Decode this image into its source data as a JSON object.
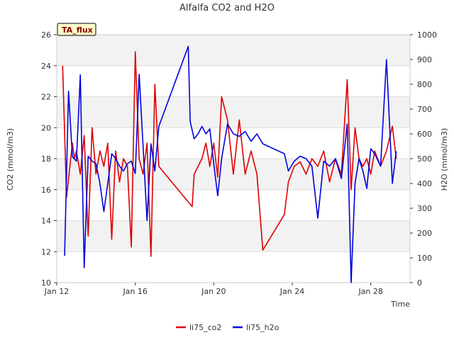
{
  "chart_data": {
    "type": "line",
    "title": "Alfalfa CO2 and H2O",
    "xlabel": "Time",
    "ylabel_left": "CO2 (mmol/m3)",
    "ylabel_right": "H2O (mmol/m3)",
    "badge": "TA_flux",
    "x_ticks": [
      "Jan 12",
      "Jan 16",
      "Jan 20",
      "Jan 24",
      "Jan 28"
    ],
    "x_tick_days": [
      12,
      16,
      20,
      24,
      28
    ],
    "xlim_days": [
      12,
      30
    ],
    "ylim_left": [
      10,
      26
    ],
    "y_ticks_left": [
      10,
      12,
      14,
      16,
      18,
      20,
      22,
      24,
      26
    ],
    "ylim_right": [
      0,
      1000
    ],
    "y_ticks_right": [
      0,
      100,
      200,
      300,
      400,
      500,
      600,
      700,
      800,
      900,
      1000
    ],
    "legend_position": "bottom-center",
    "series": [
      {
        "name": "li75_co2",
        "axis": "left",
        "color": "#dd0000",
        "x": [
          12.3,
          12.5,
          12.8,
          12.9,
          13.0,
          13.2,
          13.4,
          13.6,
          13.8,
          14.0,
          14.2,
          14.4,
          14.6,
          14.8,
          15.0,
          15.2,
          15.4,
          15.6,
          15.8,
          16.0,
          16.2,
          16.4,
          16.6,
          16.8,
          17.0,
          17.2,
          18.9,
          19.0,
          19.4,
          19.6,
          19.8,
          20.0,
          20.2,
          20.4,
          20.7,
          21.0,
          21.3,
          21.6,
          21.9,
          22.2,
          22.5,
          23.6,
          23.8,
          24.1,
          24.4,
          24.7,
          25.0,
          25.3,
          25.6,
          25.9,
          26.2,
          26.5,
          26.8,
          27.0,
          27.2,
          27.4,
          27.6,
          27.8,
          28.0,
          28.2,
          28.5,
          28.8,
          29.1,
          29.3
        ],
        "y": [
          24.0,
          15.5,
          19.0,
          18.0,
          18.5,
          17.0,
          19.5,
          13.0,
          20.0,
          17.0,
          18.5,
          17.5,
          19.0,
          12.8,
          18.5,
          16.5,
          18.0,
          17.5,
          12.3,
          24.9,
          18.0,
          17.0,
          19.0,
          11.7,
          22.8,
          17.5,
          14.9,
          17.0,
          18.0,
          19.0,
          17.5,
          19.0,
          16.8,
          22.0,
          20.5,
          17.0,
          20.5,
          17.0,
          18.5,
          17.0,
          12.1,
          14.4,
          16.5,
          17.5,
          17.8,
          17.0,
          18.0,
          17.5,
          18.5,
          16.5,
          18.0,
          17.0,
          23.1,
          16.0,
          20.0,
          18.0,
          17.5,
          18.0,
          17.0,
          18.5,
          17.5,
          18.5,
          20.1,
          18.0
        ]
      },
      {
        "name": "li75_h2o",
        "axis": "right",
        "color": "#0000dd",
        "x": [
          12.4,
          12.6,
          12.8,
          13.0,
          13.2,
          13.4,
          13.6,
          13.8,
          14.0,
          14.2,
          14.4,
          14.6,
          14.8,
          15.0,
          15.2,
          15.4,
          15.6,
          15.8,
          16.0,
          16.2,
          16.4,
          16.6,
          16.8,
          17.0,
          17.2,
          18.7,
          18.8,
          19.0,
          19.2,
          19.4,
          19.6,
          19.8,
          20.0,
          20.2,
          20.4,
          20.7,
          21.0,
          21.3,
          21.6,
          21.9,
          22.2,
          22.5,
          23.6,
          23.8,
          24.1,
          24.4,
          24.7,
          25.0,
          25.3,
          25.6,
          25.9,
          26.2,
          26.5,
          26.8,
          27.0,
          27.2,
          27.4,
          27.6,
          27.8,
          28.0,
          28.2,
          28.5,
          28.8,
          29.1,
          29.3
        ],
        "y": [
          108,
          772,
          507,
          490,
          838,
          60,
          510,
          490,
          480,
          400,
          287,
          400,
          520,
          500,
          470,
          450,
          480,
          490,
          440,
          840,
          550,
          250,
          560,
          450,
          630,
          953,
          650,
          580,
          600,
          630,
          600,
          620,
          480,
          350,
          500,
          640,
          600,
          590,
          610,
          570,
          600,
          560,
          520,
          450,
          490,
          510,
          500,
          470,
          260,
          490,
          470,
          500,
          420,
          640,
          0,
          400,
          500,
          450,
          380,
          540,
          520,
          470,
          900,
          400,
          530
        ]
      }
    ]
  }
}
